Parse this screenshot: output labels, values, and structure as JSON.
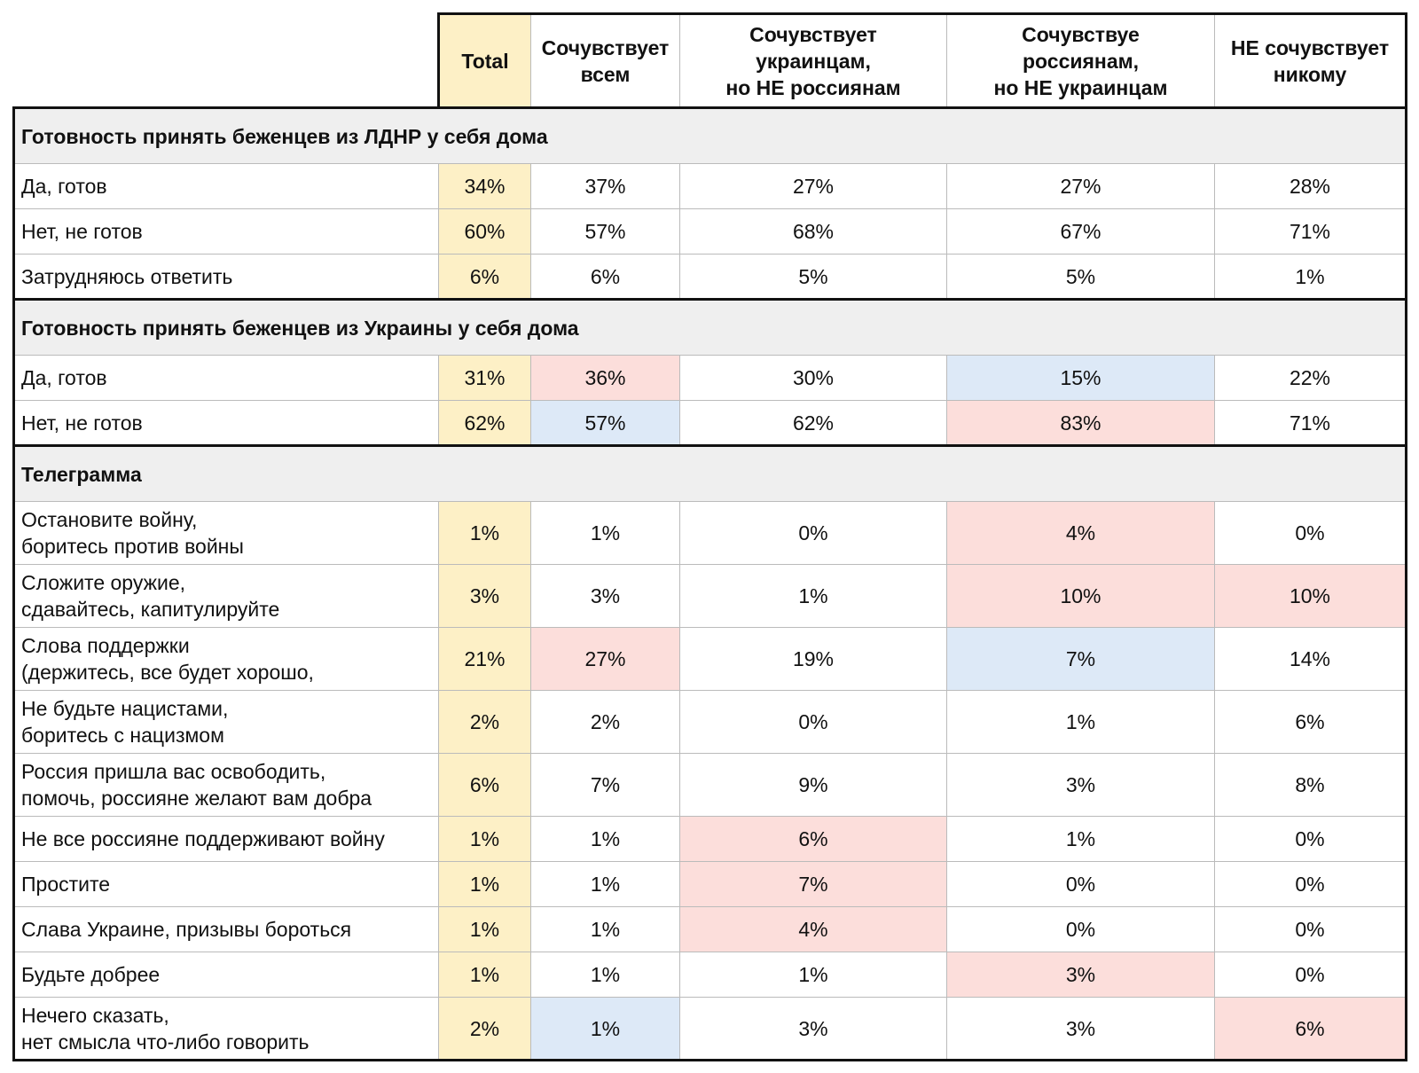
{
  "header": {
    "columns": [
      "Total",
      "Сочувствует\nвсем",
      "Сочувствует\nукраинцам,\nно НЕ россиянам",
      "Сочувствуе\nроссиянам,\nно НЕ украинцам",
      "НЕ сочувствует\nникому"
    ],
    "column_colors": [
      "#fdf0c6",
      null,
      null,
      null,
      null
    ]
  },
  "sections": [
    {
      "title": "Готовность принять беженцев из ЛДНР у себя дома",
      "rows": [
        {
          "label": "Да, готов",
          "values": [
            "34%",
            "37%",
            "27%",
            "27%",
            "28%"
          ]
        },
        {
          "label": "Нет, не готов",
          "values": [
            "60%",
            "57%",
            "68%",
            "67%",
            "71%"
          ]
        },
        {
          "label": "Затрудняюсь ответить",
          "values": [
            "6%",
            "6%",
            "5%",
            "5%",
            "1%"
          ]
        }
      ]
    },
    {
      "title": "Готовность принять беженцев из Украины у себя дома",
      "rows": [
        {
          "label": "Да, готов",
          "values": [
            "31%",
            "36%",
            "30%",
            "15%",
            "22%"
          ],
          "colors": [
            null,
            "#fcdedb",
            null,
            "#dde9f7",
            null
          ]
        },
        {
          "label": "Нет, не готов",
          "values": [
            "62%",
            "57%",
            "62%",
            "83%",
            "71%"
          ],
          "colors": [
            null,
            "#dde9f7",
            null,
            "#fcdedb",
            null
          ]
        }
      ]
    },
    {
      "title": "Телеграмма",
      "rows": [
        {
          "label": "Остановите войну,\nборитесь против войны",
          "values": [
            "1%",
            "1%",
            "0%",
            "4%",
            "0%"
          ],
          "colors": [
            null,
            null,
            null,
            "#fcdedb",
            null
          ]
        },
        {
          "label": "Сложите оружие,\nсдавайтесь, капитулируйте",
          "values": [
            "3%",
            "3%",
            "1%",
            "10%",
            "10%"
          ],
          "colors": [
            null,
            null,
            null,
            "#fcdedb",
            "#fcdedb"
          ]
        },
        {
          "label": "Слова поддержки\n(держитесь, все будет хорошо,",
          "values": [
            "21%",
            "27%",
            "19%",
            "7%",
            "14%"
          ],
          "colors": [
            null,
            "#fcdedb",
            null,
            "#dde9f7",
            null
          ]
        },
        {
          "label": "Не будьте нацистами,\nборитесь с нацизмом",
          "values": [
            "2%",
            "2%",
            "0%",
            "1%",
            "6%"
          ]
        },
        {
          "label": "Россия пришла вас освободить,\nпомочь, россияне желают вам добра",
          "values": [
            "6%",
            "7%",
            "9%",
            "3%",
            "8%"
          ]
        },
        {
          "label": "Не все россияне поддерживают войну",
          "values": [
            "1%",
            "1%",
            "6%",
            "1%",
            "0%"
          ],
          "colors": [
            null,
            null,
            "#fcdedb",
            null,
            null
          ]
        },
        {
          "label": "Простите",
          "values": [
            "1%",
            "1%",
            "7%",
            "0%",
            "0%"
          ],
          "colors": [
            null,
            null,
            "#fcdedb",
            null,
            null
          ]
        },
        {
          "label": "Слава Украине, призывы бороться",
          "values": [
            "1%",
            "1%",
            "4%",
            "0%",
            "0%"
          ],
          "colors": [
            null,
            null,
            "#fcdedb",
            null,
            null
          ]
        },
        {
          "label": "Будьте добрее",
          "values": [
            "1%",
            "1%",
            "1%",
            "3%",
            "0%"
          ],
          "colors": [
            null,
            null,
            null,
            "#fcdedb",
            null
          ]
        },
        {
          "label": "Нечего сказать,\nнет смысла что-либо говорить",
          "values": [
            "2%",
            "1%",
            "3%",
            "3%",
            "6%"
          ],
          "colors": [
            null,
            "#dde9f7",
            null,
            null,
            "#fcdedb"
          ]
        }
      ]
    }
  ]
}
